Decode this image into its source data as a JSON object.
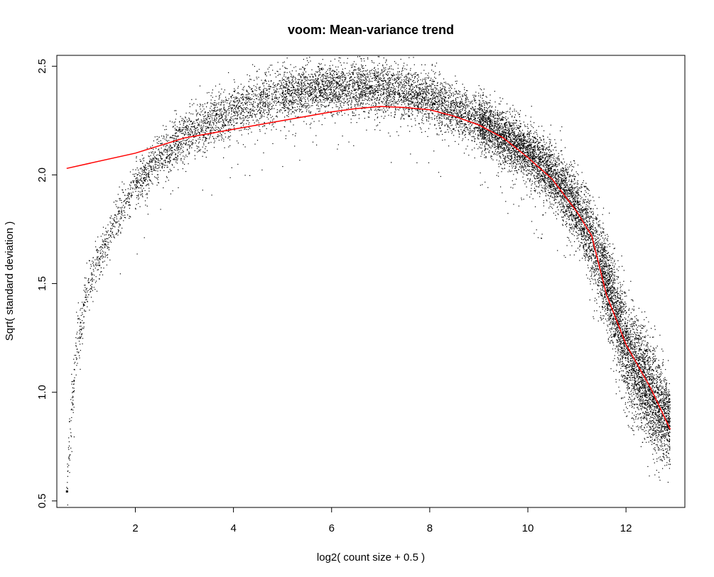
{
  "chart_data": {
    "type": "scatter",
    "title": "voom: Mean-variance trend",
    "xlabel": "log2( count size + 0.5 )",
    "ylabel": "Sqrt( standard deviation )",
    "xlim": [
      0.4,
      13.2
    ],
    "ylim": [
      0.47,
      2.55
    ],
    "x_ticks": [
      2,
      4,
      6,
      8,
      10,
      12
    ],
    "y_ticks": [
      0.5,
      1.0,
      1.5,
      2.0,
      2.5
    ],
    "x_tick_labels": [
      "2",
      "4",
      "6",
      "8",
      "10",
      "12"
    ],
    "y_tick_labels": [
      "0.5",
      "1.0",
      "1.5",
      "2.0",
      "2.5"
    ],
    "grid": false,
    "legend": "none",
    "colors": {
      "points": "#000000",
      "trend": "#ff0000",
      "frame": "#000000"
    },
    "scatter_envelope": {
      "description_of_shape": "dense cloud of gene-wise points following an arch",
      "x": [
        0.6,
        0.8,
        1.0,
        1.5,
        2.0,
        2.5,
        3.0,
        4.0,
        5.0,
        6.0,
        7.0,
        8.0,
        9.0,
        10.0,
        10.5,
        11.0,
        11.5,
        12.0,
        12.5,
        12.9
      ],
      "y_center": [
        0.6,
        1.2,
        1.45,
        1.75,
        1.95,
        2.08,
        2.18,
        2.3,
        2.37,
        2.4,
        2.4,
        2.35,
        2.25,
        2.1,
        2.0,
        1.85,
        1.6,
        1.2,
        1.0,
        0.85
      ],
      "y_spread": [
        0.08,
        0.06,
        0.05,
        0.05,
        0.05,
        0.05,
        0.06,
        0.06,
        0.06,
        0.06,
        0.06,
        0.06,
        0.06,
        0.06,
        0.07,
        0.08,
        0.1,
        0.12,
        0.12,
        0.1
      ]
    },
    "series": [
      {
        "type": "line",
        "x": [
          0.6,
          2.0,
          3.0,
          4.0,
          5.0,
          6.0,
          6.5,
          7.0,
          7.5,
          8.0,
          8.5,
          9.0,
          9.5,
          10.0,
          10.5,
          11.0,
          11.3,
          11.6,
          12.0,
          12.5,
          12.9
        ],
        "y": [
          2.03,
          2.1,
          2.17,
          2.21,
          2.25,
          2.29,
          2.305,
          2.315,
          2.31,
          2.3,
          2.27,
          2.23,
          2.17,
          2.08,
          1.98,
          1.83,
          1.72,
          1.45,
          1.22,
          1.02,
          0.83
        ]
      }
    ],
    "n_points_approx": 14000
  }
}
